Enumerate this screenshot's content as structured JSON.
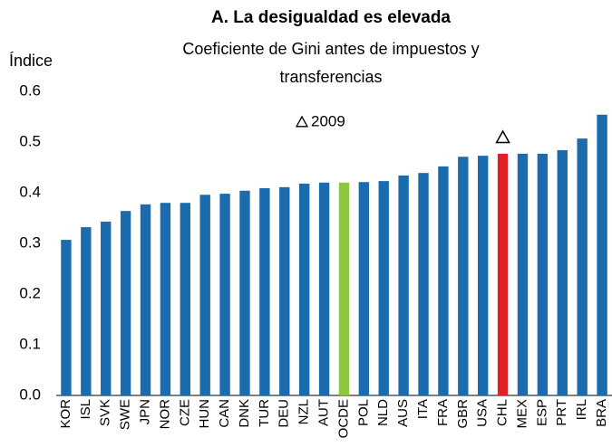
{
  "chart_data": {
    "type": "bar",
    "title": "A. La desigualdad es elevada",
    "subtitle": [
      "Coeficiente de Gini antes de impuestos y",
      "transferencias"
    ],
    "y_label": "Índice",
    "categories": [
      "KOR",
      "ISL",
      "SVK",
      "SWE",
      "JPN",
      "NOR",
      "CZE",
      "HUN",
      "CAN",
      "DNK",
      "TUR",
      "DEU",
      "NZL",
      "AUT",
      "OCDE",
      "POL",
      "NLD",
      "AUS",
      "ITA",
      "FRA",
      "GBR",
      "USA",
      "CHL",
      "MEX",
      "ESP",
      "PRT",
      "IRL",
      "BRA"
    ],
    "series": [
      {
        "name": "Índice",
        "values": [
          0.307,
          0.332,
          0.343,
          0.364,
          0.377,
          0.38,
          0.38,
          0.396,
          0.398,
          0.404,
          0.409,
          0.411,
          0.418,
          0.42,
          0.42,
          0.421,
          0.423,
          0.434,
          0.439,
          0.452,
          0.471,
          0.473,
          0.477,
          0.477,
          0.477,
          0.484,
          0.507,
          0.554
        ],
        "colors": [
          "#1b6cae",
          "#1b6cae",
          "#1b6cae",
          "#1b6cae",
          "#1b6cae",
          "#1b6cae",
          "#1b6cae",
          "#1b6cae",
          "#1b6cae",
          "#1b6cae",
          "#1b6cae",
          "#1b6cae",
          "#1b6cae",
          "#1b6cae",
          "#8dc63f",
          "#1b6cae",
          "#1b6cae",
          "#1b6cae",
          "#1b6cae",
          "#1b6cae",
          "#1b6cae",
          "#1b6cae",
          "#e31e24",
          "#1b6cae",
          "#1b6cae",
          "#1b6cae",
          "#1b6cae",
          "#1b6cae"
        ]
      },
      {
        "name": "2009",
        "marker": "triangle",
        "color": "#000000",
        "values": [
          null,
          null,
          null,
          null,
          null,
          null,
          null,
          null,
          null,
          null,
          null,
          null,
          null,
          null,
          null,
          null,
          null,
          null,
          null,
          null,
          null,
          null,
          0.509,
          null,
          null,
          null,
          null,
          null
        ]
      }
    ],
    "ylim": [
      0,
      0.6
    ],
    "yticks": [
      {
        "value": 0,
        "label": "0.0"
      },
      0.1,
      0.2,
      0.3,
      0.4,
      0.5,
      0.6
    ],
    "grid": false
  }
}
